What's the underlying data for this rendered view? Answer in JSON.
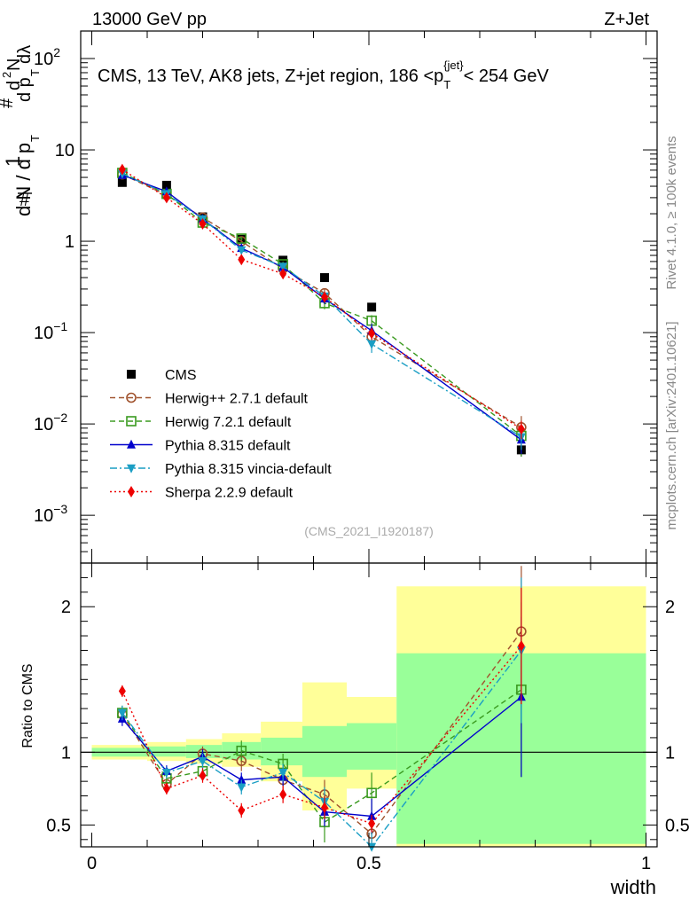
{
  "header": {
    "energy_label": "13000 GeV pp",
    "process_label": "Z+Jet"
  },
  "side_labels": {
    "rivet": "Rivet 4.1.0, ≥ 100k events",
    "source": "mcplots.cern.ch [arXiv:2401.10621]"
  },
  "colors": {
    "cms": "#000000",
    "herwigpp": "#a0522d",
    "herwig7": "#3a9a1f",
    "pythia": "#0000cc",
    "vincia": "#1a9ec4",
    "sherpa": "#ee0000",
    "band_outer": "#ffff99",
    "band_inner": "#99ff99"
  },
  "chart_data": [
    {
      "type": "scatter",
      "name": "distribution",
      "title": "CMS, 13 TeV, AK8 jets, Z+jet region, 186 <p_T^{jet}< 254 GeV",
      "title_parts": {
        "prefix": "CMS, 13 TeV, AK8 jets, Z+jet region, 186 <p",
        "sub": "T",
        "sup": "{jet}",
        "suffix": "< 254 GeV"
      },
      "ylabel": "1/N dN/dp_T dλ",
      "yscale": "log",
      "ylim": [
        0.0003,
        200
      ],
      "xlim": [
        -0.02,
        1.02
      ],
      "y_ticks": [
        {
          "value": 0.001,
          "mantissa": "10",
          "exp": "−3"
        },
        {
          "value": 0.01,
          "mantissa": "10",
          "exp": "−2"
        },
        {
          "value": 0.1,
          "mantissa": "10",
          "exp": "−1"
        },
        {
          "value": 1,
          "mantissa": "1",
          "exp": ""
        },
        {
          "value": 10,
          "mantissa": "10",
          "exp": ""
        },
        {
          "value": 100,
          "mantissa": "10",
          "exp": "2"
        }
      ],
      "watermark": "(CMS_2021_I1920187)",
      "x": [
        0.055,
        0.135,
        0.2,
        0.27,
        0.345,
        0.42,
        0.505,
        0.775
      ],
      "series": [
        {
          "name": "CMS",
          "key": "cms",
          "marker": "square",
          "dash": "",
          "values": [
            4.4,
            4.1,
            1.85,
            1.05,
            0.62,
            0.4,
            0.19,
            0.0052
          ],
          "errors": [
            0.3,
            0.25,
            0.1,
            0.05,
            0.04,
            0.03,
            0.015,
            0.0008
          ]
        },
        {
          "name": "Herwig++ 2.7.1 default",
          "key": "herwigpp",
          "marker": "circle-open",
          "dash": "6,4",
          "values": [
            5.4,
            3.2,
            1.82,
            1.0,
            0.5,
            0.27,
            0.09,
            0.0092
          ],
          "errors": [
            0.2,
            0.15,
            0.1,
            0.05,
            0.04,
            0.03,
            0.015,
            0.003
          ]
        },
        {
          "name": "Herwig 7.2.1 default",
          "key": "herwig7",
          "marker": "square-open",
          "dash": "6,4",
          "values": [
            5.6,
            3.3,
            1.6,
            1.07,
            0.56,
            0.21,
            0.135,
            0.0074
          ],
          "errors": [
            0.2,
            0.15,
            0.1,
            0.05,
            0.04,
            0.03,
            0.02,
            0.003
          ]
        },
        {
          "name": "Pythia 8.315 default",
          "key": "pythia",
          "marker": "triangle-up",
          "dash": "",
          "values": [
            5.3,
            3.5,
            1.75,
            0.84,
            0.52,
            0.235,
            0.105,
            0.0067
          ],
          "errors": [
            0.2,
            0.15,
            0.1,
            0.05,
            0.04,
            0.03,
            0.02,
            0.002
          ]
        },
        {
          "name": "Pythia 8.315 vincia-default",
          "key": "vincia",
          "marker": "triangle-down",
          "dash": "8,3,2,3",
          "values": [
            5.5,
            3.3,
            1.75,
            0.8,
            0.53,
            0.25,
            0.075,
            0.0072
          ],
          "errors": [
            0.2,
            0.15,
            0.1,
            0.05,
            0.04,
            0.03,
            0.015,
            0.002
          ]
        },
        {
          "name": "Sherpa 2.2.9 default",
          "key": "sherpa",
          "marker": "diamond",
          "dash": "2,3",
          "values": [
            6.1,
            3.0,
            1.55,
            0.63,
            0.44,
            0.245,
            0.098,
            0.0088
          ],
          "errors": [
            0.2,
            0.15,
            0.1,
            0.05,
            0.04,
            0.03,
            0.015,
            0.002
          ]
        }
      ]
    },
    {
      "type": "scatter",
      "name": "ratio",
      "ylabel": "Ratio to CMS",
      "xlabel": "width",
      "ylim": [
        0.35,
        2.3
      ],
      "xlim": [
        -0.02,
        1.02
      ],
      "x_ticks": [
        0,
        0.5,
        1
      ],
      "x_tick_labels": [
        "0",
        "0.5",
        "1"
      ],
      "y_ticks": [
        0.5,
        1,
        2
      ],
      "y_tick_labels": [
        "0.5",
        "1",
        "2"
      ],
      "reference_line": 1,
      "bands": [
        {
          "x0": 0.0,
          "x1": 0.1,
          "inner": [
            0.97,
            1.03
          ],
          "outer": [
            0.95,
            1.05
          ]
        },
        {
          "x0": 0.1,
          "x1": 0.17,
          "inner": [
            0.97,
            1.04
          ],
          "outer": [
            0.94,
            1.07
          ]
        },
        {
          "x0": 0.17,
          "x1": 0.235,
          "inner": [
            0.96,
            1.05
          ],
          "outer": [
            0.92,
            1.09
          ]
        },
        {
          "x0": 0.235,
          "x1": 0.305,
          "inner": [
            0.95,
            1.07
          ],
          "outer": [
            0.9,
            1.13
          ]
        },
        {
          "x0": 0.305,
          "x1": 0.38,
          "inner": [
            0.91,
            1.1
          ],
          "outer": [
            0.8,
            1.21
          ]
        },
        {
          "x0": 0.38,
          "x1": 0.46,
          "inner": [
            0.83,
            1.18
          ],
          "outer": [
            0.6,
            1.48
          ]
        },
        {
          "x0": 0.46,
          "x1": 0.55,
          "inner": [
            0.88,
            1.2
          ],
          "outer": [
            0.75,
            1.38
          ]
        },
        {
          "x0": 0.55,
          "x1": 1.0,
          "inner": [
            0.37,
            1.68
          ],
          "outer": [
            0.35,
            2.14
          ]
        }
      ],
      "x": [
        0.055,
        0.135,
        0.2,
        0.27,
        0.345,
        0.42,
        0.505,
        0.775
      ],
      "series": [
        {
          "name": "Herwig++ 2.7.1 default",
          "key": "herwigpp",
          "marker": "circle-open",
          "dash": "6,4",
          "values": [
            1.26,
            0.78,
            0.99,
            0.94,
            0.81,
            0.71,
            0.44,
            1.83
          ],
          "errors": [
            0.05,
            0.04,
            0.05,
            0.07,
            0.08,
            0.1,
            0.06,
            0.45
          ]
        },
        {
          "name": "Herwig 7.2.1 default",
          "key": "herwig7",
          "marker": "square-open",
          "dash": "6,4",
          "values": [
            1.27,
            0.82,
            0.87,
            1.01,
            0.92,
            0.52,
            0.72,
            1.43
          ],
          "errors": [
            0.05,
            0.04,
            0.05,
            0.07,
            0.07,
            0.14,
            0.14,
            0.6
          ]
        },
        {
          "name": "Pythia 8.315 default",
          "key": "pythia",
          "marker": "triangle-up",
          "dash": "",
          "values": [
            1.23,
            0.87,
            0.97,
            0.81,
            0.83,
            0.59,
            0.56,
            1.38
          ],
          "errors": [
            0.05,
            0.04,
            0.05,
            0.05,
            0.06,
            0.1,
            0.12,
            0.55
          ]
        },
        {
          "name": "Pythia 8.315 vincia-default",
          "key": "vincia",
          "marker": "triangle-down",
          "dash": "8,3,2,3",
          "values": [
            1.27,
            0.86,
            0.94,
            0.76,
            0.86,
            0.66,
            0.35,
            1.7
          ],
          "errors": [
            0.05,
            0.04,
            0.05,
            0.05,
            0.06,
            0.1,
            0.1,
            0.5
          ]
        },
        {
          "name": "Sherpa 2.2.9 default",
          "key": "sherpa",
          "marker": "diamond",
          "dash": "2,3",
          "values": [
            1.42,
            0.75,
            0.84,
            0.6,
            0.71,
            0.62,
            0.51,
            1.73
          ],
          "errors": [
            0.04,
            0.04,
            0.05,
            0.05,
            0.06,
            0.08,
            0.06,
            0.4
          ]
        }
      ]
    }
  ]
}
